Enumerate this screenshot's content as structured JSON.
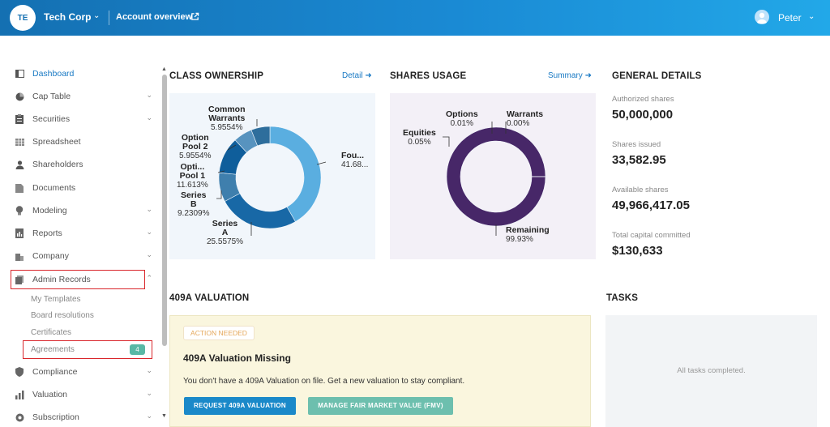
{
  "header": {
    "avatar_initials": "TE",
    "company_name": "Tech Corp",
    "account_link": "Account overview",
    "user_name": "Peter"
  },
  "sidebar": {
    "items": [
      {
        "label": "Dashboard",
        "icon": "dashboard-icon",
        "active": true
      },
      {
        "label": "Cap Table",
        "icon": "pie-chart-icon",
        "chevron": true
      },
      {
        "label": "Securities",
        "icon": "clipboard-icon",
        "chevron": true
      },
      {
        "label": "Spreadsheet",
        "icon": "grid-icon"
      },
      {
        "label": "Shareholders",
        "icon": "person-icon"
      },
      {
        "label": "Documents",
        "icon": "document-icon"
      },
      {
        "label": "Modeling",
        "icon": "lightbulb-icon",
        "chevron": true
      },
      {
        "label": "Reports",
        "icon": "report-icon",
        "chevron": true
      },
      {
        "label": "Company",
        "icon": "building-icon",
        "chevron": true
      },
      {
        "label": "Admin Records",
        "icon": "records-icon",
        "chevron": true,
        "expanded": true
      },
      {
        "label": "Compliance",
        "icon": "shield-icon",
        "chevron": true
      },
      {
        "label": "Valuation",
        "icon": "bar-chart-icon",
        "chevron": true
      },
      {
        "label": "Subscription",
        "icon": "subscription-icon",
        "chevron": true
      }
    ],
    "admin_sub_items": [
      {
        "label": "My Templates"
      },
      {
        "label": "Board resolutions"
      },
      {
        "label": "Certificates"
      },
      {
        "label": "Agreements",
        "badge": "4"
      }
    ]
  },
  "class_ownership": {
    "title": "CLASS OWNERSHIP",
    "link": "Detail",
    "slices": [
      {
        "name": "Fou...",
        "percent": "41.68...",
        "value": 41.68,
        "color": "#5aaee0"
      },
      {
        "name": "Series A",
        "percent": "25.5575%",
        "value": 25.5575,
        "color": "#1868a6"
      },
      {
        "name": "Series B",
        "percent": "9.2309%",
        "value": 9.2309,
        "color": "#3f7fad"
      },
      {
        "name": "Opti... Pool 1",
        "percent": "11.613%",
        "value": 11.613,
        "color": "#0f5e9b"
      },
      {
        "name": "Option Pool 2",
        "percent": "5.9554%",
        "value": 5.9554,
        "color": "#5793bf"
      },
      {
        "name": "Common Warrants",
        "percent": "5.9554%",
        "value": 5.9554,
        "color": "#2e6e9c"
      }
    ]
  },
  "shares_usage": {
    "title": "SHARES USAGE",
    "link": "Summary",
    "slices": [
      {
        "name": "Remaining",
        "percent": "99.93%",
        "value": 99.93,
        "color": "#472768"
      },
      {
        "name": "Equities",
        "percent": "0.05%",
        "value": 0.05,
        "color": "#5a3a7d"
      },
      {
        "name": "Options",
        "percent": "0.01%",
        "value": 0.01,
        "color": "#5a3a7d"
      },
      {
        "name": "Warrants",
        "percent": "0.00%",
        "value": 0.0,
        "color": "#5a3a7d"
      }
    ]
  },
  "general_details": {
    "title": "GENERAL DETAILS",
    "authorized_label": "Authorized shares",
    "authorized_value": "50,000,000",
    "issued_label": "Shares issued",
    "issued_value": "33,582.95",
    "available_label": "Available shares",
    "available_value": "49,966,417.05",
    "capital_label": "Total capital committed",
    "capital_value": "$130,633"
  },
  "valuation": {
    "title": "409A VALUATION",
    "pill": "ACTION NEEDED",
    "card_title": "409A Valuation Missing",
    "description": "You don't have a 409A Valuation on file. Get a new valuation to stay compliant.",
    "primary_button": "REQUEST 409A VALUATION",
    "secondary_button": "MANAGE FAIR MARKET VALUE (FMV)"
  },
  "tasks": {
    "title": "TASKS",
    "empty_text": "All tasks completed."
  }
}
